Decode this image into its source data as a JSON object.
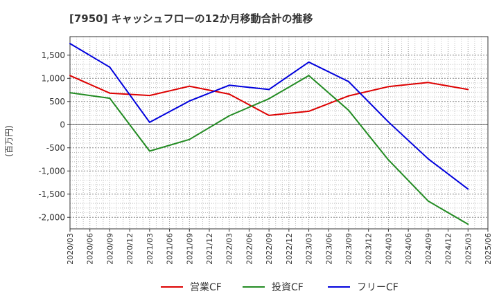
{
  "chart_data": {
    "type": "line",
    "title": "[7950]  キャッシュフローの12か月移動合計の推移",
    "ylabel": "(百万円)",
    "xlabel": "",
    "ylim": [
      -2250,
      1900
    ],
    "yticks": [
      1500,
      1000,
      500,
      0,
      -500,
      -1000,
      -1500,
      -2000
    ],
    "ytick_labels": [
      "1,500",
      "1,000",
      "500",
      "0",
      "-500",
      "-1,000",
      "-1,500",
      "-2,000"
    ],
    "x_ticks": [
      "2020/03",
      "2020/06",
      "2020/09",
      "2020/12",
      "2021/03",
      "2021/06",
      "2021/09",
      "2021/12",
      "2022/03",
      "2022/06",
      "2022/09",
      "2022/12",
      "2023/03",
      "2023/06",
      "2023/09",
      "2023/12",
      "2024/03",
      "2024/06",
      "2024/09",
      "2024/12",
      "2025/03",
      "2025/06"
    ],
    "x": [
      "2020/03",
      "2020/09",
      "2021/03",
      "2021/09",
      "2022/03",
      "2022/09",
      "2023/03",
      "2023/09",
      "2024/03",
      "2024/09",
      "2025/03"
    ],
    "grid": true,
    "legend_position": "bottom",
    "series": [
      {
        "name": "営業CF",
        "color": "#dd0000",
        "values": [
          1060,
          680,
          630,
          830,
          660,
          200,
          290,
          620,
          820,
          910,
          760
        ]
      },
      {
        "name": "投資CF",
        "color": "#228b22",
        "values": [
          690,
          570,
          -570,
          -320,
          190,
          560,
          1060,
          310,
          -760,
          -1650,
          -2150
        ]
      },
      {
        "name": "フリーCF",
        "color": "#0000dd",
        "values": [
          1750,
          1240,
          50,
          510,
          850,
          760,
          1350,
          930,
          60,
          -740,
          -1390
        ]
      }
    ]
  }
}
